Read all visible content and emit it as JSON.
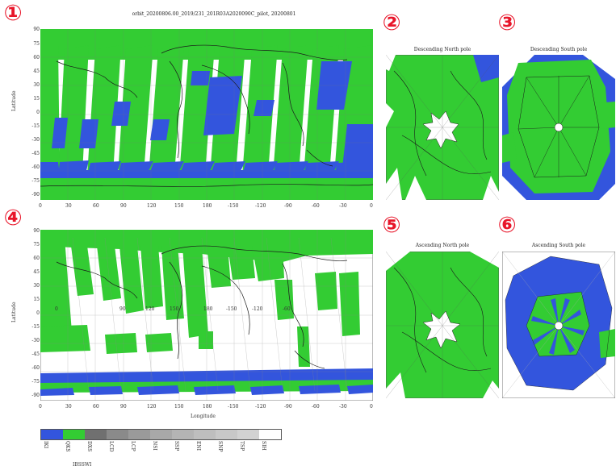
{
  "figure_title": "orbit_20200806.00_2019/231_201R03A2020090C_pilot, 20200801",
  "colors": {
    "green": "#33cc33",
    "blue": "#3355dd",
    "white": "#ffffff",
    "grid": "#999999",
    "coast": "#1a1a1a",
    "marker": "#e8162a"
  },
  "markers": [
    "①",
    "②",
    "③",
    "④",
    "⑤",
    "⑥"
  ],
  "maps": {
    "main_top": {
      "y_axis_label": "Latitude",
      "lat_ticks": [
        "90",
        "75",
        "60",
        "45",
        "30",
        "15",
        "0",
        "-15",
        "-30",
        "-45",
        "-60",
        "-75",
        "-90"
      ],
      "lon_ticks": [
        "0",
        "30",
        "60",
        "90",
        "120",
        "150",
        "180",
        "-150",
        "-120",
        "-90",
        "-60",
        "-30",
        "0"
      ]
    },
    "main_bottom": {
      "y_axis_label": "Latitude",
      "x_axis_label": "Longitude",
      "lat_ticks": [
        "90",
        "75",
        "60",
        "45",
        "30",
        "15",
        "0",
        "-15",
        "-30",
        "-45",
        "-60",
        "-75",
        "-90"
      ],
      "lon_ticks": [
        "0",
        "30",
        "60",
        "90",
        "120",
        "150",
        "180",
        "-150",
        "-120",
        "-90",
        "-60",
        "-30",
        "0"
      ],
      "inner_numbers": [
        "0",
        "90",
        "120",
        "150",
        "180",
        "-150",
        "-120",
        "-60"
      ]
    },
    "polar": [
      {
        "title": "Descending North pole"
      },
      {
        "title": "Descending South pole"
      },
      {
        "title": "Ascending North pole"
      },
      {
        "title": "Ascending South pole"
      }
    ]
  },
  "legend": {
    "label": "IBSSWI",
    "classes": [
      {
        "name": "IKI",
        "color": "#3355dd"
      },
      {
        "name": "QKS",
        "color": "#33cc33"
      },
      {
        "name": "DXS",
        "color": "#707070"
      },
      {
        "name": "LCD",
        "color": "#8a8a8a"
      },
      {
        "name": "LCP",
        "color": "#9a9a9a"
      },
      {
        "name": "NSI",
        "color": "#a8a8a8"
      },
      {
        "name": "SSP",
        "color": "#b4b4b4"
      },
      {
        "name": "ENI",
        "color": "#bebebe"
      },
      {
        "name": "SNP",
        "color": "#c8c8c8"
      },
      {
        "name": "TSP",
        "color": "#d2d2d2"
      },
      {
        "name": "SIH",
        "color": "#ffffff"
      }
    ]
  }
}
